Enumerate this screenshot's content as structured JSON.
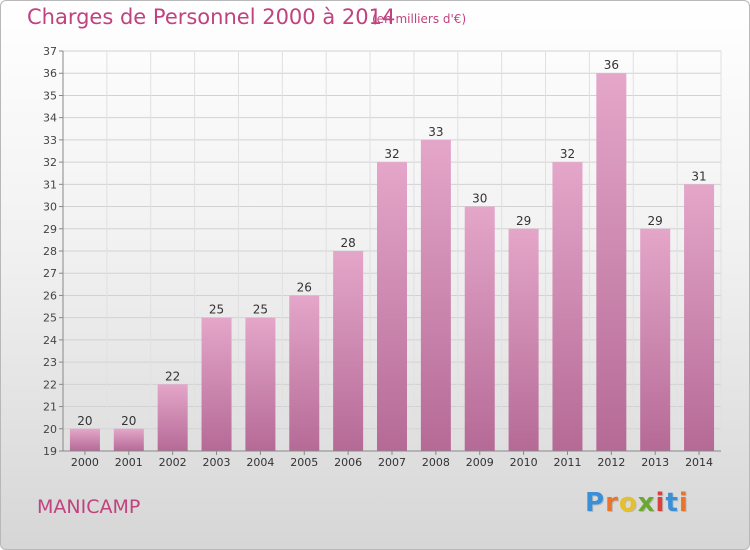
{
  "header": {
    "title": "Charges de Personnel 2000 à 2014",
    "subtitle": "(en milliers d'€)"
  },
  "footer": {
    "place": "MANICAMP",
    "logo_text": "Proxiti"
  },
  "colors": {
    "title": "#c0427f",
    "bar_top": "#e4a6c9",
    "bar_bottom": "#b56a96",
    "logo": [
      "#3a8fd6",
      "#e9742b",
      "#e5c02c",
      "#6aa82f",
      "#d8413c",
      "#3a8fd6",
      "#e9742b"
    ]
  },
  "chart_data": {
    "type": "bar",
    "title": "Charges de Personnel 2000 à 2014",
    "subtitle": "(en milliers d'€)",
    "xlabel": "",
    "ylabel": "",
    "categories": [
      "2000",
      "2001",
      "2002",
      "2003",
      "2004",
      "2005",
      "2006",
      "2007",
      "2008",
      "2009",
      "2010",
      "2011",
      "2012",
      "2013",
      "2014"
    ],
    "values": [
      20,
      20,
      22,
      25,
      25,
      26,
      28,
      32,
      33,
      30,
      29,
      32,
      36,
      29,
      31
    ],
    "data_labels": [
      "20",
      "20",
      "22",
      "25",
      "25",
      "26",
      "28",
      "32",
      "33",
      "30",
      "29",
      "32",
      "36",
      "29",
      "31"
    ],
    "ylim": [
      19,
      37
    ],
    "yticks": [
      "19",
      "20",
      "21",
      "22",
      "23",
      "24",
      "25",
      "26",
      "27",
      "28",
      "29",
      "30",
      "31",
      "32",
      "33",
      "34",
      "35",
      "36",
      "37"
    ],
    "grid": true,
    "legend": "none"
  }
}
